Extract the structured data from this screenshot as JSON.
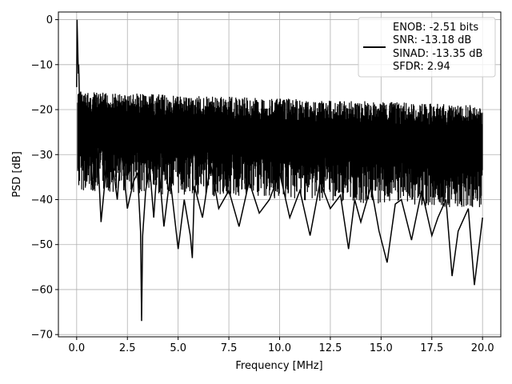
{
  "chart_data": {
    "type": "line",
    "title": "",
    "xlabel": "Frequency [MHz]",
    "ylabel": "PSD [dB]",
    "xlim": [
      -0.9,
      20.9
    ],
    "ylim": [
      -70.5,
      1.7
    ],
    "xticks": [
      0.0,
      2.5,
      5.0,
      7.5,
      10.0,
      12.5,
      15.0,
      17.5,
      20.0
    ],
    "xtick_labels": [
      "0.0",
      "2.5",
      "5.0",
      "7.5",
      "10.0",
      "12.5",
      "15.0",
      "17.5",
      "20.0"
    ],
    "yticks": [
      0,
      -10,
      -20,
      -30,
      -40,
      -50,
      -60,
      -70
    ],
    "ytick_labels": [
      "0",
      "−10",
      "−20",
      "−30",
      "−40",
      "−50",
      "−60",
      "−70"
    ],
    "grid": true,
    "legend_position": "upper-right",
    "legend_lines": [
      "ENOB: -2.51 bits",
      "SNR: -13.18 dB",
      "SINAD: -13.35 dB",
      "SFDR: 2.94"
    ],
    "series_color": "#000000",
    "series": [
      {
        "x": [
          0.0,
          0.02,
          0.05,
          0.08,
          0.1,
          0.15,
          0.2,
          0.3,
          0.4,
          0.5,
          0.6,
          0.8,
          1.0,
          1.2,
          1.5,
          1.8,
          2.0,
          2.2,
          2.5,
          2.8,
          3.0,
          3.15,
          3.2,
          3.25,
          3.4,
          3.6,
          3.8,
          4.0,
          4.3,
          4.6,
          5.0,
          5.3,
          5.6,
          5.7,
          5.8,
          6.2,
          6.6,
          7.0,
          7.5,
          8.0,
          8.5,
          9.0,
          9.5,
          10.0,
          10.5,
          11.0,
          11.5,
          12.0,
          12.5,
          13.0,
          13.4,
          13.7,
          14.0,
          14.5,
          14.9,
          15.3,
          15.7,
          16.0,
          16.5,
          17.0,
          17.5,
          17.8,
          18.2,
          18.5,
          18.8,
          19.0,
          19.3,
          19.6,
          20.0
        ],
        "y": [
          -15,
          0,
          -6,
          -12,
          -10,
          -20,
          -16,
          -30,
          -25,
          -36,
          -22,
          -38,
          -26,
          -45,
          -31,
          -33,
          -40,
          -28,
          -42,
          -36,
          -34,
          -47,
          -67,
          -48,
          -38,
          -33,
          -44,
          -30,
          -46,
          -35,
          -51,
          -40,
          -48,
          -53,
          -37,
          -44,
          -32,
          -42,
          -38,
          -46,
          -36,
          -43,
          -40,
          -34,
          -44,
          -38,
          -48,
          -36,
          -42,
          -39,
          -51,
          -40,
          -45,
          -37,
          -47,
          -54,
          -41,
          -40,
          -49,
          -38,
          -48,
          -44,
          -40,
          -57,
          -47,
          -45,
          -42,
          -59,
          -44
        ]
      }
    ]
  }
}
